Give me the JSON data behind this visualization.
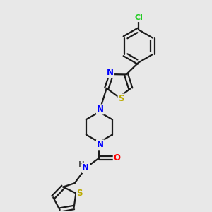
{
  "bg_color": "#e8e8e8",
  "bond_color": "#1a1a1a",
  "bond_width": 1.6,
  "atom_colors": {
    "N": "#0000ff",
    "S": "#bbaa00",
    "O": "#ff0000",
    "Cl": "#22cc22",
    "H": "#555555",
    "C": "#1a1a1a"
  },
  "font_size_atom": 8.5,
  "fig_width": 3.0,
  "fig_height": 3.0,
  "dpi": 100
}
